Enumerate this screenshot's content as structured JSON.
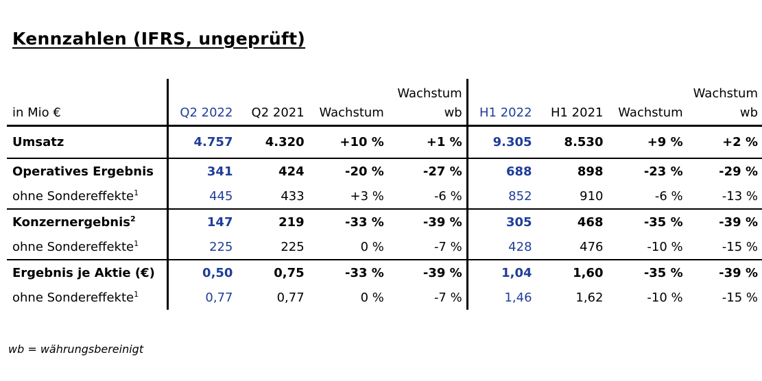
{
  "title": "Kennzahlen (IFRS, ungeprüft)",
  "header": {
    "unit_label": "in Mio €",
    "columns": [
      "Q2 2022",
      "Q2 2021",
      "Wachstum",
      "Wachstum",
      "H1 2022",
      "H1 2021",
      "Wachstum",
      "Wachstum"
    ],
    "columns_sub": [
      "",
      "",
      "",
      "wb",
      "",
      "",
      "",
      "wb"
    ]
  },
  "rows": [
    {
      "label": "Umsatz",
      "sup": "",
      "values": [
        "4.757",
        "4.320",
        "+10 %",
        "+1 %",
        "9.305",
        "8.530",
        "+9 %",
        "+2 %"
      ]
    },
    {
      "label": "Operatives Ergebnis",
      "sup": "",
      "values": [
        "341",
        "424",
        "-20 %",
        "-27 %",
        "688",
        "898",
        "-23 %",
        "-29 %"
      ]
    },
    {
      "label": "ohne Sondereffekte",
      "sup": "1",
      "values": [
        "445",
        "433",
        "+3 %",
        "-6 %",
        "852",
        "910",
        "-6 %",
        "-13 %"
      ]
    },
    {
      "label": "Konzernergebnis",
      "sup": "2",
      "values": [
        "147",
        "219",
        "-33 %",
        "-39 %",
        "305",
        "468",
        "-35 %",
        "-39 %"
      ]
    },
    {
      "label": "ohne Sondereffekte",
      "sup": "1",
      "values": [
        "225",
        "225",
        "0 %",
        "-7 %",
        "428",
        "476",
        "-10 %",
        "-15 %"
      ]
    },
    {
      "label": "Ergebnis je Aktie (€)",
      "sup": "",
      "values": [
        "0,50",
        "0,75",
        "-33 %",
        "-39 %",
        "1,04",
        "1,60",
        "-35 %",
        "-39 %"
      ]
    },
    {
      "label": "ohne Sondereffekte",
      "sup": "1",
      "values": [
        "0,77",
        "0,77",
        "0 %",
        "-7 %",
        "1,46",
        "1,62",
        "-10 %",
        "-15 %"
      ]
    }
  ],
  "footnote": "wb = währungsbereinigt",
  "colors": {
    "highlight_blue": "#1f3d99",
    "rule": "#000000"
  }
}
